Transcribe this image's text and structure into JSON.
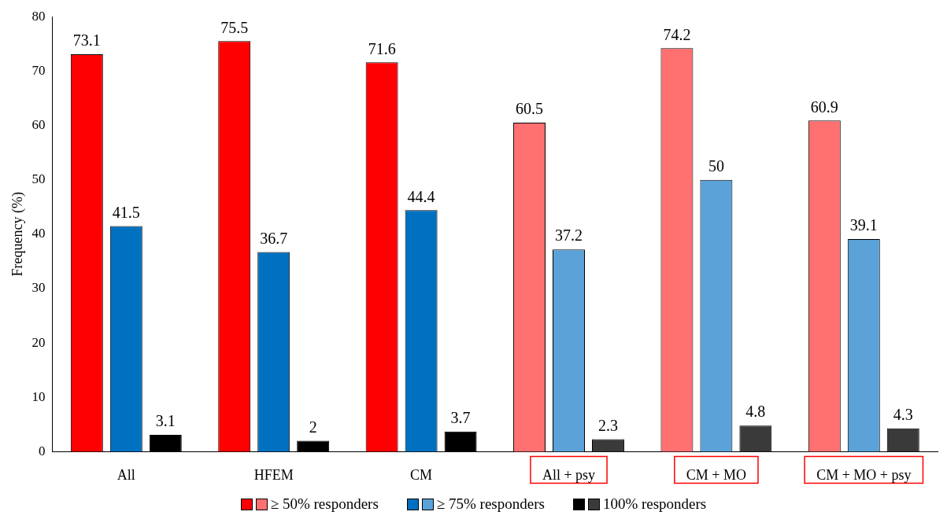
{
  "chart_data": {
    "type": "bar",
    "ylabel": "Frequency (%)",
    "categories": [
      "All",
      "HFEM",
      "CM",
      "All + psy",
      "CM + MO",
      "CM + MO + psy"
    ],
    "series": [
      {
        "name": "≥ 50% responders",
        "color": "#ff0000",
        "colors": [
          "#ff0000",
          "#ff0000",
          "#ff0000",
          "#ff7070",
          "#ff7070",
          "#ff7070"
        ],
        "values": [
          73.1,
          75.5,
          71.6,
          60.5,
          74.2,
          60.9
        ]
      },
      {
        "name": "≥ 75% responders",
        "color": "#0070c0",
        "colors": [
          "#0070c0",
          "#0070c0",
          "#0070c0",
          "#5aa2d8",
          "#5aa2d8",
          "#5aa2d8"
        ],
        "values": [
          41.5,
          36.7,
          44.4,
          37.2,
          50,
          39.1
        ]
      },
      {
        "name": "100% responders",
        "color": "#000000",
        "colors": [
          "#000000",
          "#000000",
          "#000000",
          "#3a3a3a",
          "#3a3a3a",
          "#3a3a3a"
        ],
        "values": [
          3.1,
          2,
          3.7,
          2.3,
          4.8,
          4.3
        ]
      }
    ],
    "ylim": [
      0,
      80
    ],
    "yticks": [
      0,
      10,
      20,
      30,
      40,
      50,
      60,
      70,
      80
    ],
    "grid": false,
    "legend": "bottom",
    "data_labels": true
  }
}
